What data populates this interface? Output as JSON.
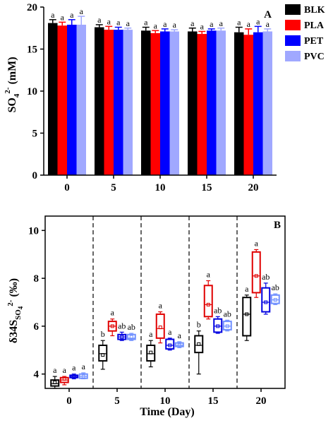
{
  "chart_data": [
    {
      "type": "bar",
      "panel_label": "A",
      "categories": [
        "0",
        "5",
        "10",
        "15",
        "20"
      ],
      "series": [
        {
          "name": "BLK",
          "color": "#000000",
          "values": [
            18.1,
            17.6,
            17.2,
            17.1,
            17.0
          ],
          "errors": [
            0.4,
            0.3,
            0.4,
            0.4,
            0.6
          ],
          "letters": [
            "a",
            "a",
            "a",
            "a",
            "a"
          ]
        },
        {
          "name": "PLA",
          "color": "#ff0000",
          "values": [
            17.8,
            17.3,
            16.9,
            16.8,
            16.7
          ],
          "errors": [
            0.4,
            0.4,
            0.3,
            0.3,
            0.7
          ],
          "letters": [
            "a",
            "a",
            "a",
            "a",
            "a"
          ]
        },
        {
          "name": "PET",
          "color": "#0000ff",
          "values": [
            17.9,
            17.3,
            17.1,
            17.2,
            17.0
          ],
          "errors": [
            0.6,
            0.3,
            0.3,
            0.2,
            0.7
          ],
          "letters": [
            "a",
            "a",
            "a",
            "a",
            "a"
          ]
        },
        {
          "name": "PVC",
          "color": "#a0a8ff",
          "values": [
            17.9,
            17.3,
            17.1,
            17.2,
            17.1
          ],
          "errors": [
            1.0,
            0.2,
            0.2,
            0.3,
            0.3
          ],
          "letters": [
            "a",
            "a",
            "a",
            "a",
            "a"
          ]
        }
      ],
      "ylabel_base": "SO",
      "ylabel_sub": "4",
      "ylabel_sup": "2-",
      "ylabel_unit": " (mM)",
      "ylim": [
        0,
        20
      ],
      "yticks": [
        0,
        5,
        10,
        15,
        20
      ],
      "legend_position": "top-right (outside)"
    },
    {
      "type": "box",
      "panel_label": "B",
      "categories": [
        "0",
        "5",
        "10",
        "15",
        "20"
      ],
      "xlabel": "Time (Day)",
      "ylabel_prefix": "δ34S",
      "ylabel_sub": "SO",
      "ylabel_sub4": "4",
      "ylabel_sup": "2-",
      "ylabel_unit": " (‰)",
      "ylim": [
        3.4,
        10.6
      ],
      "yticks": [
        4,
        6,
        8,
        10
      ],
      "series": [
        {
          "name": "BLK",
          "color": "#000000",
          "boxes": [
            {
              "min": 3.4,
              "q1": 3.5,
              "median": 3.6,
              "mean": 3.65,
              "q3": 3.75,
              "max": 3.9,
              "letter": "a"
            },
            {
              "min": 4.2,
              "q1": 4.55,
              "median": 4.85,
              "mean": 4.8,
              "q3": 5.2,
              "max": 5.4,
              "letter": "b"
            },
            {
              "min": 4.3,
              "q1": 4.55,
              "median": 4.85,
              "mean": 4.9,
              "q3": 5.2,
              "max": 5.4,
              "letter": "a"
            },
            {
              "min": 4.0,
              "q1": 4.9,
              "median": 5.2,
              "mean": 5.25,
              "q3": 5.6,
              "max": 5.8,
              "letter": "b"
            },
            {
              "min": 5.4,
              "q1": 5.6,
              "median": 6.5,
              "mean": 6.5,
              "q3": 7.2,
              "max": 7.3,
              "letter": "a"
            }
          ]
        },
        {
          "name": "PLA",
          "color": "#e00000",
          "boxes": [
            {
              "min": 3.55,
              "q1": 3.65,
              "median": 3.75,
              "mean": 3.8,
              "q3": 3.85,
              "max": 3.9,
              "letter": "a"
            },
            {
              "min": 5.6,
              "q1": 5.8,
              "median": 6.0,
              "mean": 6.0,
              "q3": 6.2,
              "max": 6.3,
              "letter": "a"
            },
            {
              "min": 5.3,
              "q1": 5.5,
              "median": 5.9,
              "mean": 5.95,
              "q3": 6.5,
              "max": 6.6,
              "letter": "a"
            },
            {
              "min": 6.3,
              "q1": 6.4,
              "median": 6.9,
              "mean": 6.9,
              "q3": 7.7,
              "max": 7.9,
              "letter": "a"
            },
            {
              "min": 7.2,
              "q1": 7.4,
              "median": 8.1,
              "mean": 8.1,
              "q3": 9.1,
              "max": 9.2,
              "letter": "a"
            }
          ]
        },
        {
          "name": "PET",
          "color": "#0000e0",
          "boxes": [
            {
              "min": 3.8,
              "q1": 3.85,
              "median": 3.9,
              "mean": 3.9,
              "q3": 3.95,
              "max": 4.0,
              "letter": "a"
            },
            {
              "min": 5.4,
              "q1": 5.45,
              "median": 5.55,
              "mean": 5.55,
              "q3": 5.65,
              "max": 5.75,
              "letter": "ab"
            },
            {
              "min": 5.0,
              "q1": 5.05,
              "median": 5.2,
              "mean": 5.2,
              "q3": 5.45,
              "max": 5.5,
              "letter": "a"
            },
            {
              "min": 5.7,
              "q1": 5.75,
              "median": 6.0,
              "mean": 6.0,
              "q3": 6.3,
              "max": 6.4,
              "letter": "ab"
            },
            {
              "min": 6.5,
              "q1": 6.6,
              "median": 7.0,
              "mean": 7.0,
              "q3": 7.6,
              "max": 7.8,
              "letter": "ab"
            }
          ]
        },
        {
          "name": "PVC",
          "color": "#7090ff",
          "boxes": [
            {
              "min": 3.8,
              "q1": 3.82,
              "median": 3.9,
              "mean": 3.9,
              "q3": 4.0,
              "max": 4.05,
              "letter": "a"
            },
            {
              "min": 5.4,
              "q1": 5.45,
              "median": 5.5,
              "mean": 5.55,
              "q3": 5.65,
              "max": 5.7,
              "letter": "ab"
            },
            {
              "min": 5.1,
              "q1": 5.15,
              "median": 5.2,
              "mean": 5.2,
              "q3": 5.3,
              "max": 5.35,
              "letter": "a"
            },
            {
              "min": 5.8,
              "q1": 5.85,
              "median": 6.0,
              "mean": 6.0,
              "q3": 6.2,
              "max": 6.25,
              "letter": "ab"
            },
            {
              "min": 6.9,
              "q1": 6.95,
              "median": 7.1,
              "mean": 7.1,
              "q3": 7.3,
              "max": 7.35,
              "letter": "ab"
            }
          ]
        }
      ],
      "group_separators": "dashed vertical lines between day groups"
    }
  ]
}
